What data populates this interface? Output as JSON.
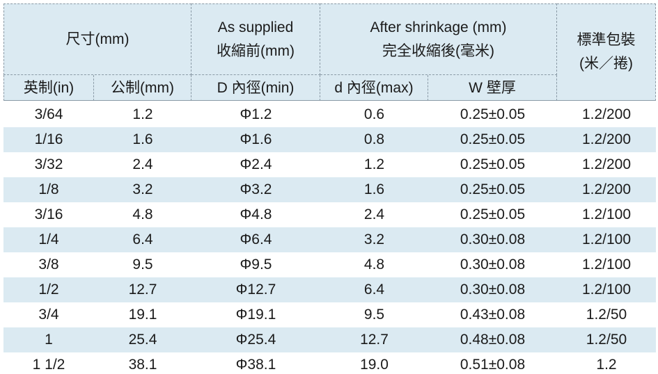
{
  "header": {
    "size": "尺寸(mm)",
    "supplied": [
      "As supplied",
      "收縮前(mm)"
    ],
    "after": [
      "After shrinkage (mm)",
      "完全收縮後(毫米)"
    ],
    "package": [
      "標準包裝",
      "(米／捲)"
    ],
    "sub": [
      "英制(in)",
      "公制(mm)",
      "D  內徑(min)",
      "d  內徑(max)",
      "W  壁厚"
    ]
  },
  "table": {
    "rows": [
      [
        "3/64",
        "1.2",
        "Φ1.2",
        "0.6",
        "0.25±0.05",
        "1.2/200"
      ],
      [
        "1/16",
        "1.6",
        "Φ1.6",
        "0.8",
        "0.25±0.05",
        "1.2/200"
      ],
      [
        "3/32",
        "2.4",
        "Φ2.4",
        "1.2",
        "0.25±0.05",
        "1.2/200"
      ],
      [
        "1/8",
        "3.2",
        "Φ3.2",
        "1.6",
        "0.25±0.05",
        "1.2/200"
      ],
      [
        "3/16",
        "4.8",
        "Φ4.8",
        "2.4",
        "0.25±0.05",
        "1.2/100"
      ],
      [
        "1/4",
        "6.4",
        "Φ6.4",
        "3.2",
        "0.30±0.08",
        "1.2/100"
      ],
      [
        "3/8",
        "9.5",
        "Φ9.5",
        "4.8",
        "0.30±0.08",
        "1.2/100"
      ],
      [
        "1/2",
        "12.7",
        "Φ12.7",
        "6.4",
        "0.30±0.08",
        "1.2/100"
      ],
      [
        "3/4",
        "19.1",
        "Φ19.1",
        "9.5",
        "0.43±0.08",
        "1.2/50"
      ],
      [
        "1",
        "25.4",
        "Φ25.4",
        "12.7",
        "0.48±0.08",
        "1.2/50"
      ],
      [
        "1 1/2",
        "38.1",
        "Φ38.1",
        "19.0",
        "0.51±0.08",
        "1.2"
      ]
    ]
  }
}
